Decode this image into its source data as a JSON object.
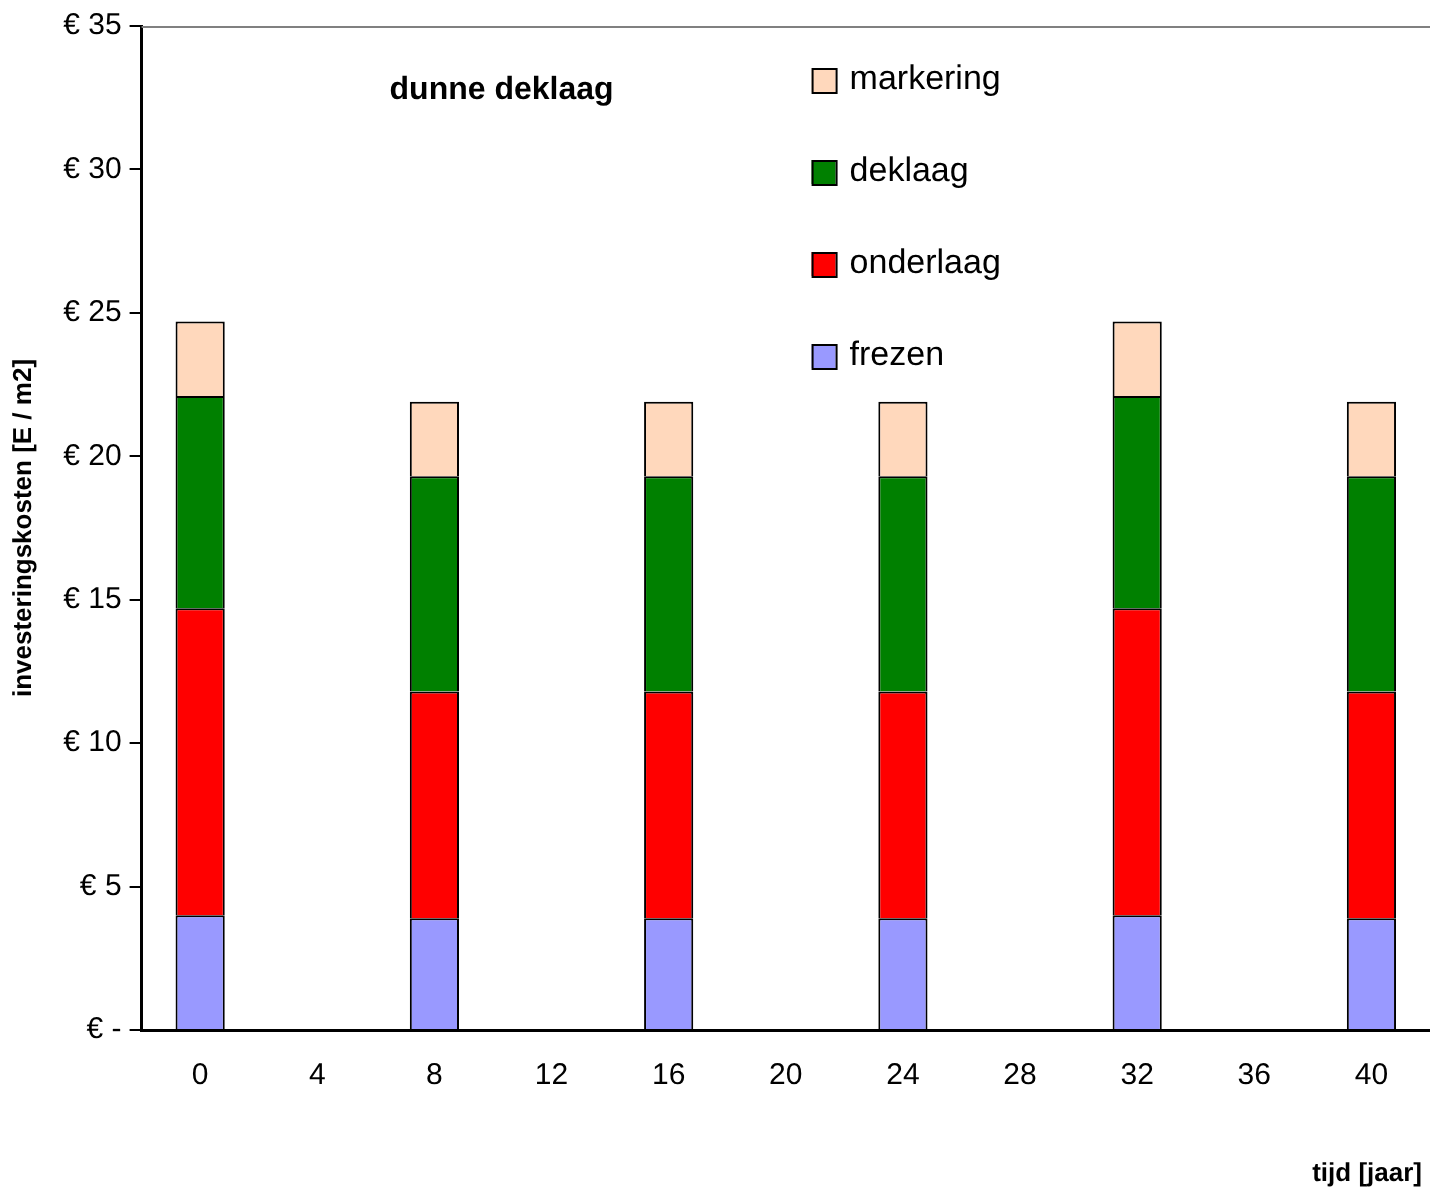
{
  "chart_data": {
    "type": "bar",
    "title": "dunne deklaag",
    "xlabel": "tijd [jaar]",
    "ylabel": "investeringskosten [E / m2]",
    "categories": [
      "0",
      "4",
      "8",
      "12",
      "16",
      "20",
      "24",
      "28",
      "32",
      "36",
      "40"
    ],
    "stacked": true,
    "series": [
      {
        "name": "frezen",
        "color": "#9999ff",
        "values": [
          4.0,
          null,
          3.9,
          null,
          3.9,
          null,
          3.9,
          null,
          4.0,
          null,
          3.9
        ]
      },
      {
        "name": "onderlaag",
        "color": "#ff0000",
        "values": [
          10.7,
          null,
          7.9,
          null,
          7.9,
          null,
          7.9,
          null,
          10.7,
          null,
          7.9
        ]
      },
      {
        "name": "deklaag",
        "color": "#008000",
        "values": [
          7.4,
          null,
          7.5,
          null,
          7.5,
          null,
          7.5,
          null,
          7.4,
          null,
          7.5
        ]
      },
      {
        "name": "markering",
        "color": "#ffd8bc",
        "values": [
          2.6,
          null,
          2.6,
          null,
          2.6,
          null,
          2.6,
          null,
          2.6,
          null,
          2.6
        ]
      }
    ],
    "ylim": [
      0,
      35
    ],
    "yticks": [
      {
        "value": 0,
        "label": "€ -"
      },
      {
        "value": 5,
        "label": "€ 5"
      },
      {
        "value": 10,
        "label": "€ 10"
      },
      {
        "value": 15,
        "label": "€ 15"
      },
      {
        "value": 20,
        "label": "€ 20"
      },
      {
        "value": 25,
        "label": "€ 25"
      },
      {
        "value": 30,
        "label": "€ 30"
      },
      {
        "value": 35,
        "label": "€ 35"
      }
    ],
    "grid": false,
    "legend": "top"
  }
}
